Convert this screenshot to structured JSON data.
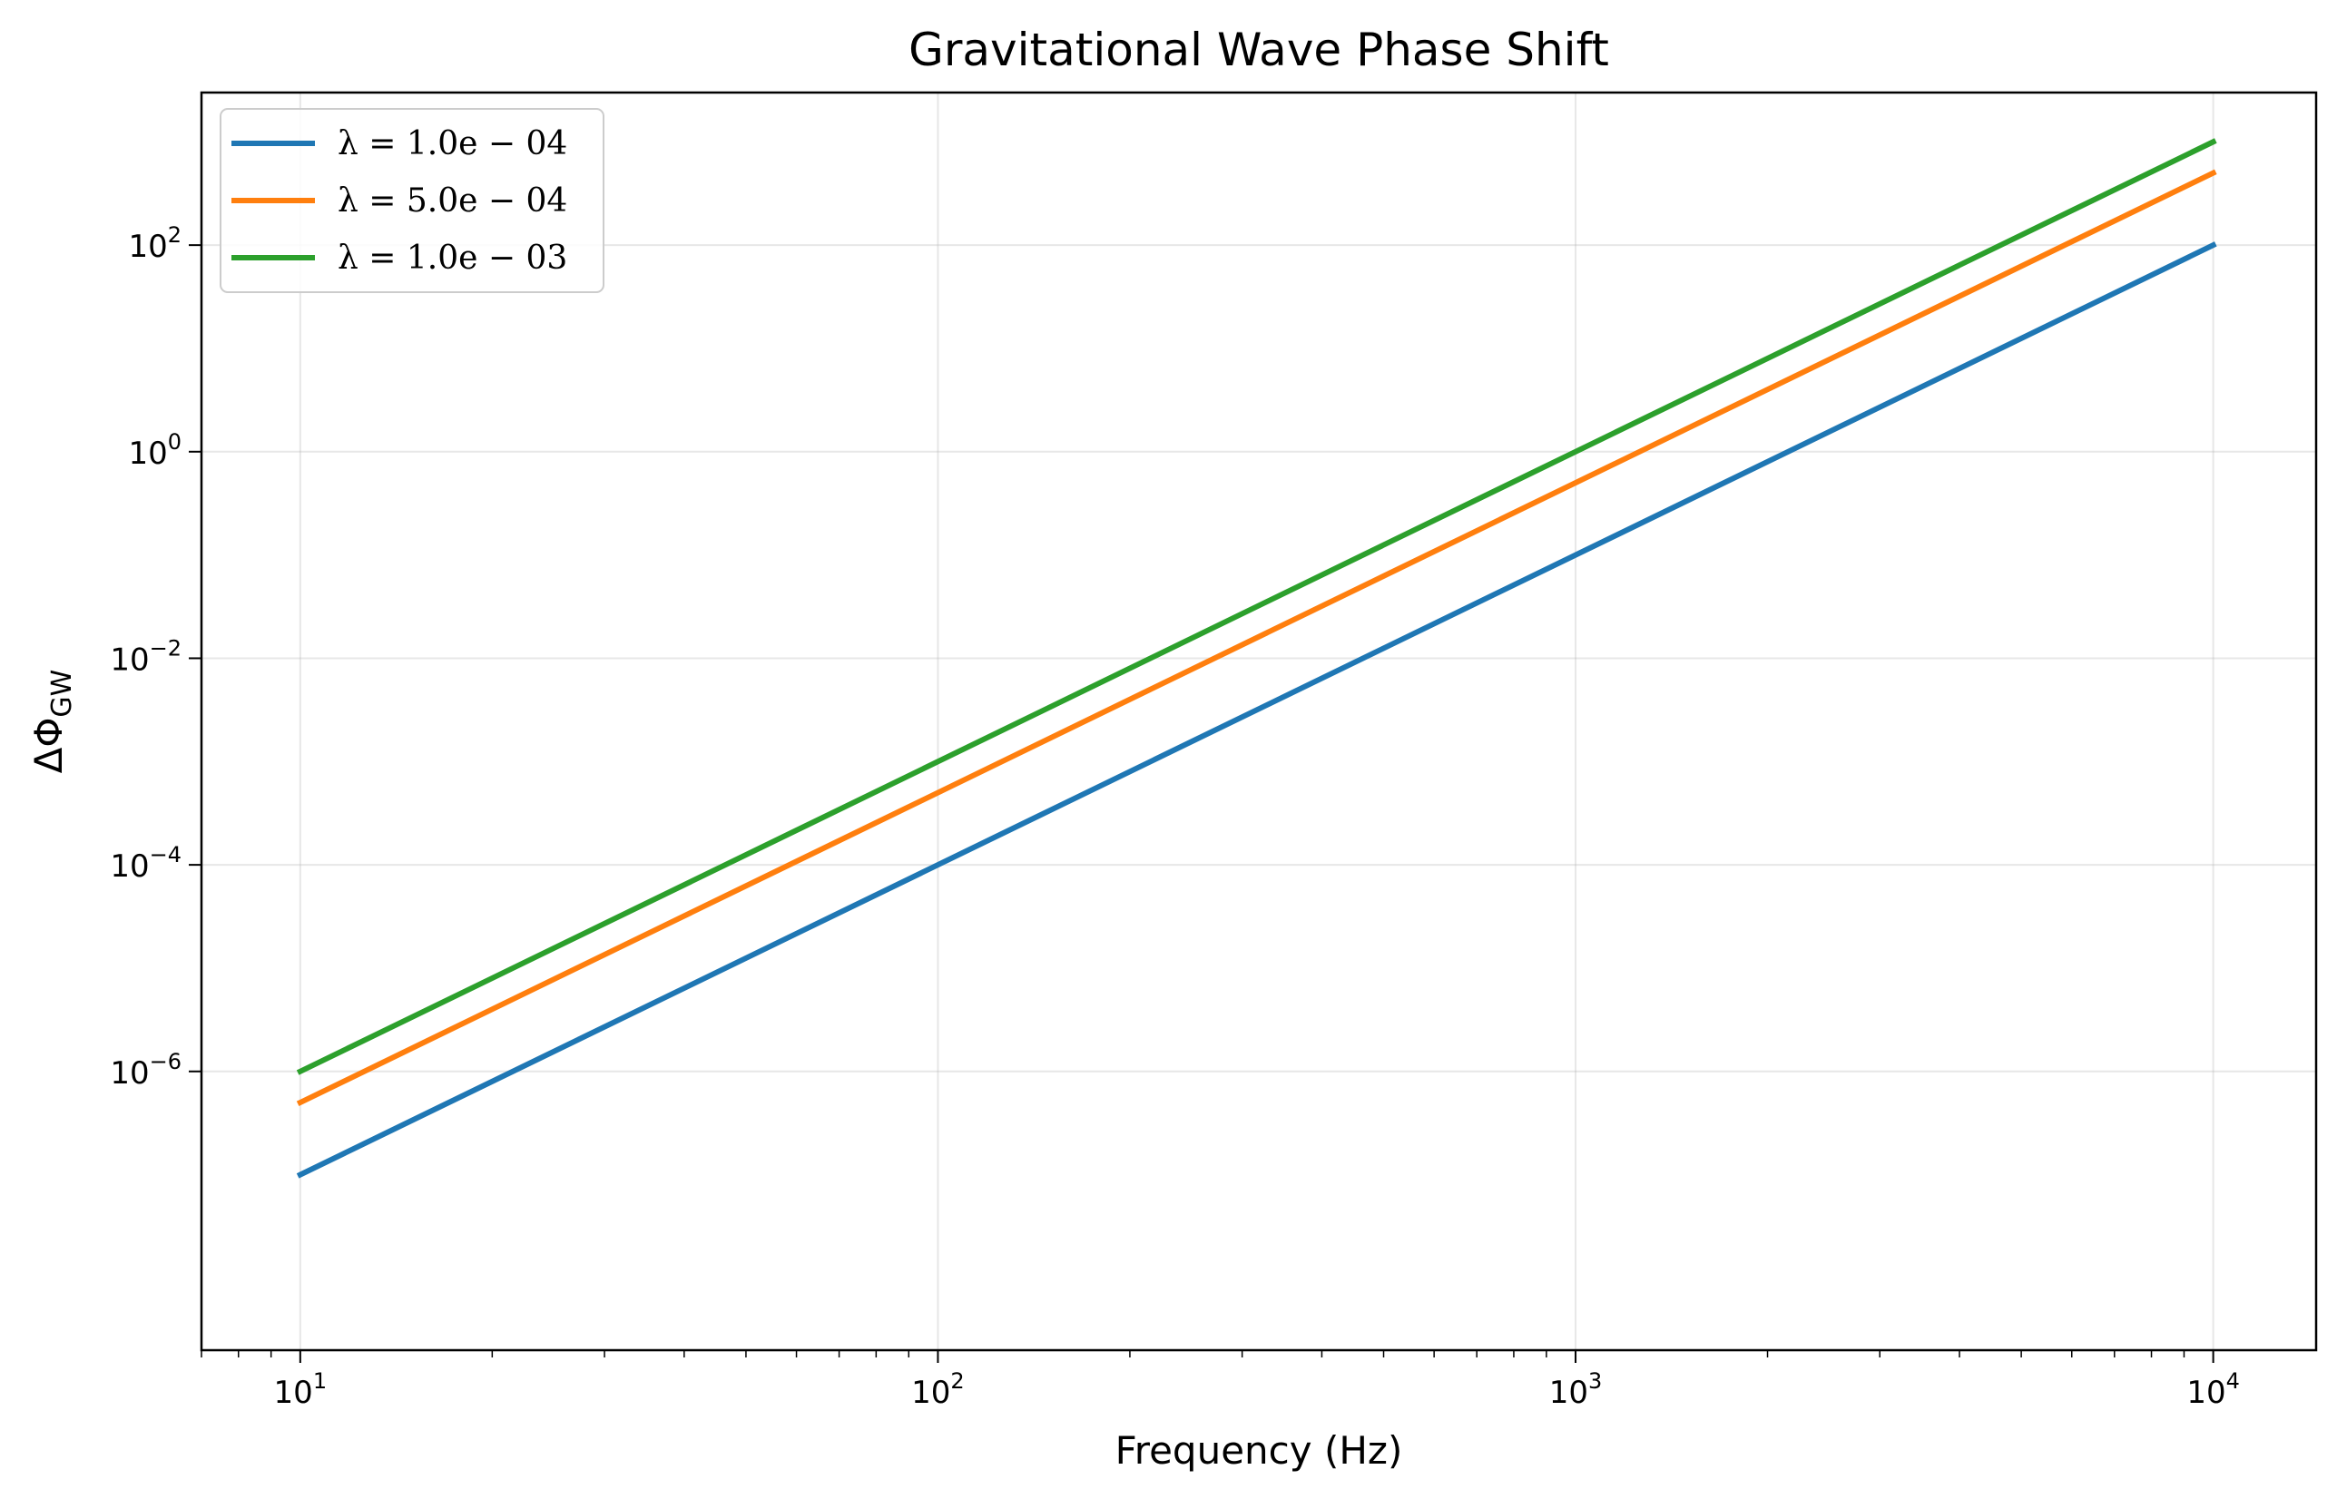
{
  "chart_data": {
    "type": "line",
    "title": "Gravitational Wave Phase Shift",
    "xlabel": "Frequency (Hz)",
    "ylabel_symbol": "ΔΦ",
    "ylabel_subscript": "GW",
    "xscale": "log",
    "yscale": "log",
    "xlim": [
      7,
      14500
    ],
    "ylim": [
      2e-09,
      3000
    ],
    "grid": true,
    "legend_position": "top-left",
    "x_ticks": [
      {
        "value": 10,
        "base": "10",
        "exp": "1"
      },
      {
        "value": 100,
        "base": "10",
        "exp": "2"
      },
      {
        "value": 1000,
        "base": "10",
        "exp": "3"
      },
      {
        "value": 10000,
        "base": "10",
        "exp": "4"
      }
    ],
    "y_ticks": [
      {
        "value": 1e-06,
        "base": "10",
        "exp": "−6"
      },
      {
        "value": 0.0001,
        "base": "10",
        "exp": "−4"
      },
      {
        "value": 0.01,
        "base": "10",
        "exp": "−2"
      },
      {
        "value": 1,
        "base": "10",
        "exp": "0"
      },
      {
        "value": 100,
        "base": "10",
        "exp": "2"
      }
    ],
    "series": [
      {
        "name": "λ = 1.0e − 04",
        "color": "#1f77b4",
        "x": [
          10,
          10000
        ],
        "y": [
          1e-07,
          100
        ]
      },
      {
        "name": "λ = 5.0e − 04",
        "color": "#ff7f0e",
        "x": [
          10,
          10000
        ],
        "y": [
          5e-07,
          500
        ]
      },
      {
        "name": "λ = 1.0e − 03",
        "color": "#2ca02c",
        "x": [
          10,
          10000
        ],
        "y": [
          1e-06,
          1000
        ]
      }
    ]
  }
}
